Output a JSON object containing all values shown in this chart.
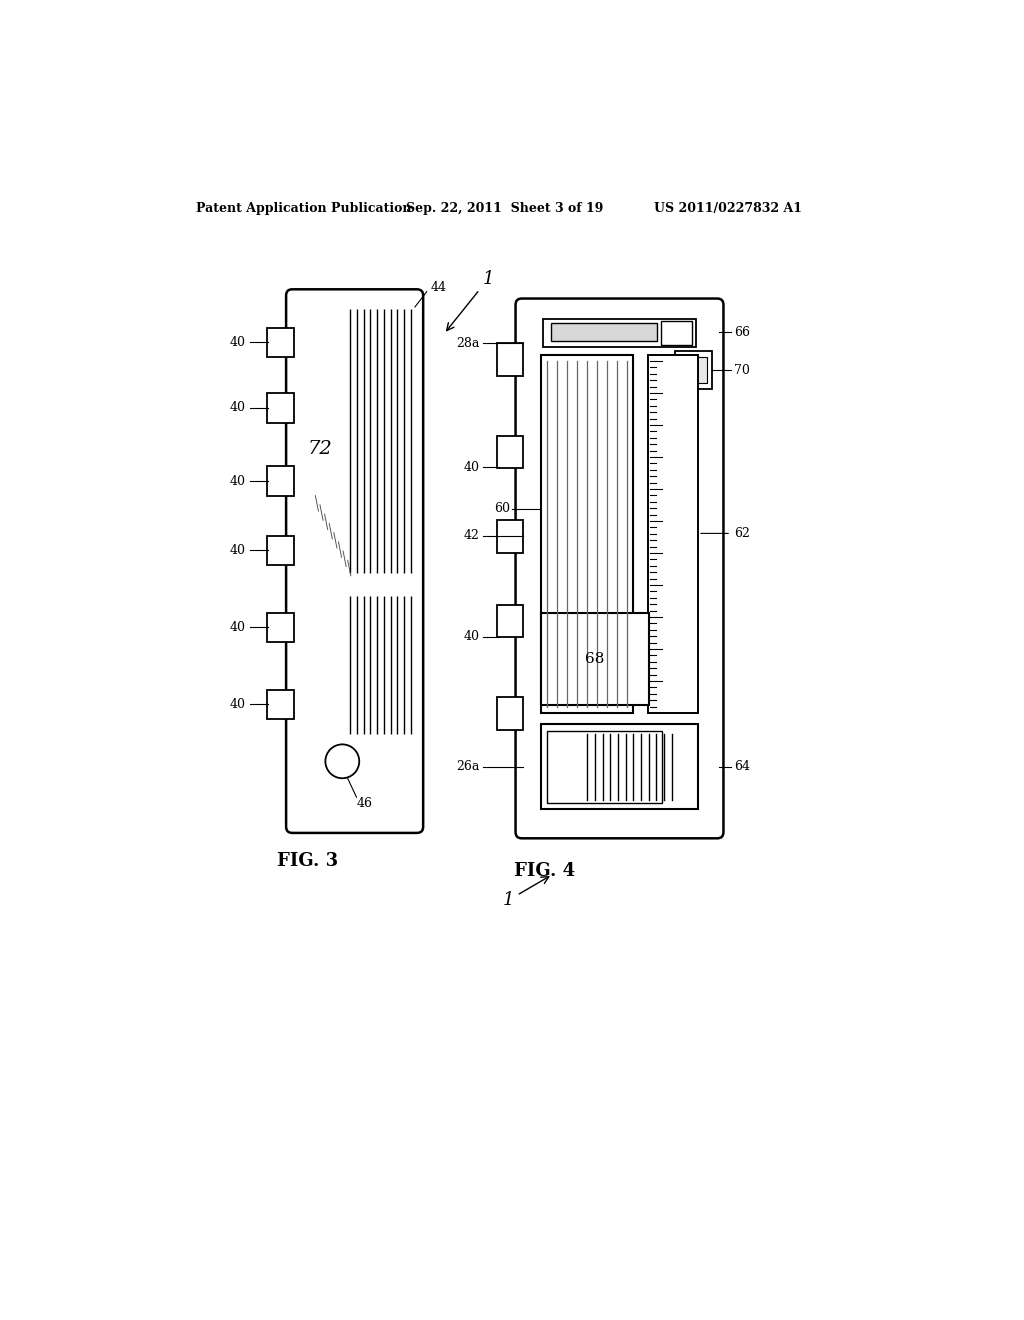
{
  "bg_color": "#ffffff",
  "header_left": "Patent Application Publication",
  "header_mid": "Sep. 22, 2011  Sheet 3 of 19",
  "header_right": "US 2011/0227832 A1",
  "fig3_label": "FIG. 3",
  "fig4_label": "FIG. 4",
  "labels": {
    "1a": "1",
    "1b": "1",
    "40": "40",
    "42": "42",
    "44": "44",
    "46": "46",
    "60": "60",
    "62": "62",
    "64": "64",
    "66": "66",
    "68": "68",
    "70": "70",
    "72": "72",
    "26a": "26a",
    "28a": "28a"
  }
}
